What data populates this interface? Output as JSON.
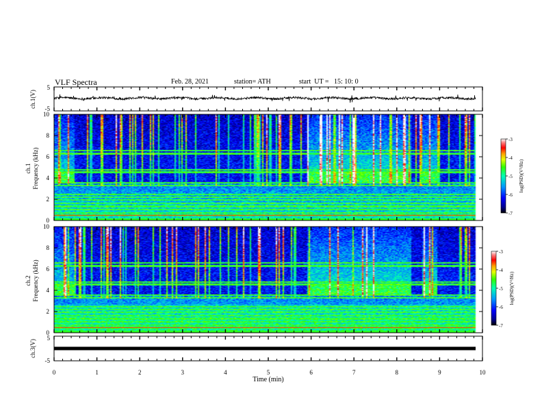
{
  "header": {
    "title": "VLF Spectra",
    "date": "Feb. 28, 2021",
    "station": "station= ATH",
    "start": "start  UT =   15: 10: 0"
  },
  "chart_data": [
    {
      "type": "line",
      "panel": "ch1-waveform",
      "ylabel": "ch.1(V)",
      "ylim": [
        -5,
        5
      ],
      "yticks": [
        "5",
        "-5"
      ],
      "xlim": [
        0,
        10
      ],
      "series": [
        {
          "values_description_level": 0.3
        }
      ]
    },
    {
      "type": "heatmap",
      "panel": "ch1-spectrogram",
      "ylabel": "ch.1\nFrequency (kHz)",
      "ylim": [
        0,
        10
      ],
      "yticks": [
        "0",
        "2",
        "4",
        "6",
        "8",
        "10"
      ],
      "xlim": [
        0,
        10
      ],
      "colorbar": {
        "label": "log(PSD)(V²/Hz)",
        "range": [
          -7,
          -3
        ],
        "ticks": [
          "-3",
          "-4",
          "-5",
          "-6",
          "-7"
        ]
      }
    },
    {
      "type": "heatmap",
      "panel": "ch2-spectrogram",
      "ylabel": "ch.2\nFrequency (kHz)",
      "ylim": [
        0,
        10
      ],
      "yticks": [
        "0",
        "2",
        "4",
        "6",
        "8",
        "10"
      ],
      "xlim": [
        0,
        10
      ],
      "colorbar": {
        "label": "log(PSD)(V²/Hz)",
        "range": [
          -7,
          -3
        ],
        "ticks": [
          "-3",
          "-4",
          "-5",
          "-6",
          "-7"
        ]
      }
    },
    {
      "type": "line",
      "panel": "ch3-waveform",
      "ylabel": "ch.3(V)",
      "ylim": [
        -5,
        5
      ],
      "yticks": [
        "5",
        "-5"
      ],
      "xlim": [
        0,
        10
      ],
      "xlabel": "Time  (min)",
      "xticks": [
        "0",
        "1",
        "2",
        "3",
        "4",
        "5",
        "6",
        "7",
        "8",
        "9",
        "10"
      ],
      "series": [
        {
          "constant_value": 0
        }
      ]
    }
  ],
  "colors": {
    "colormap": [
      "#000060",
      "#0000c8",
      "#0050ff",
      "#00b4ff",
      "#00ffc8",
      "#32ff32",
      "#c8ff00",
      "#ffd200",
      "#ff6400",
      "#e60000",
      "#ffffff"
    ]
  }
}
